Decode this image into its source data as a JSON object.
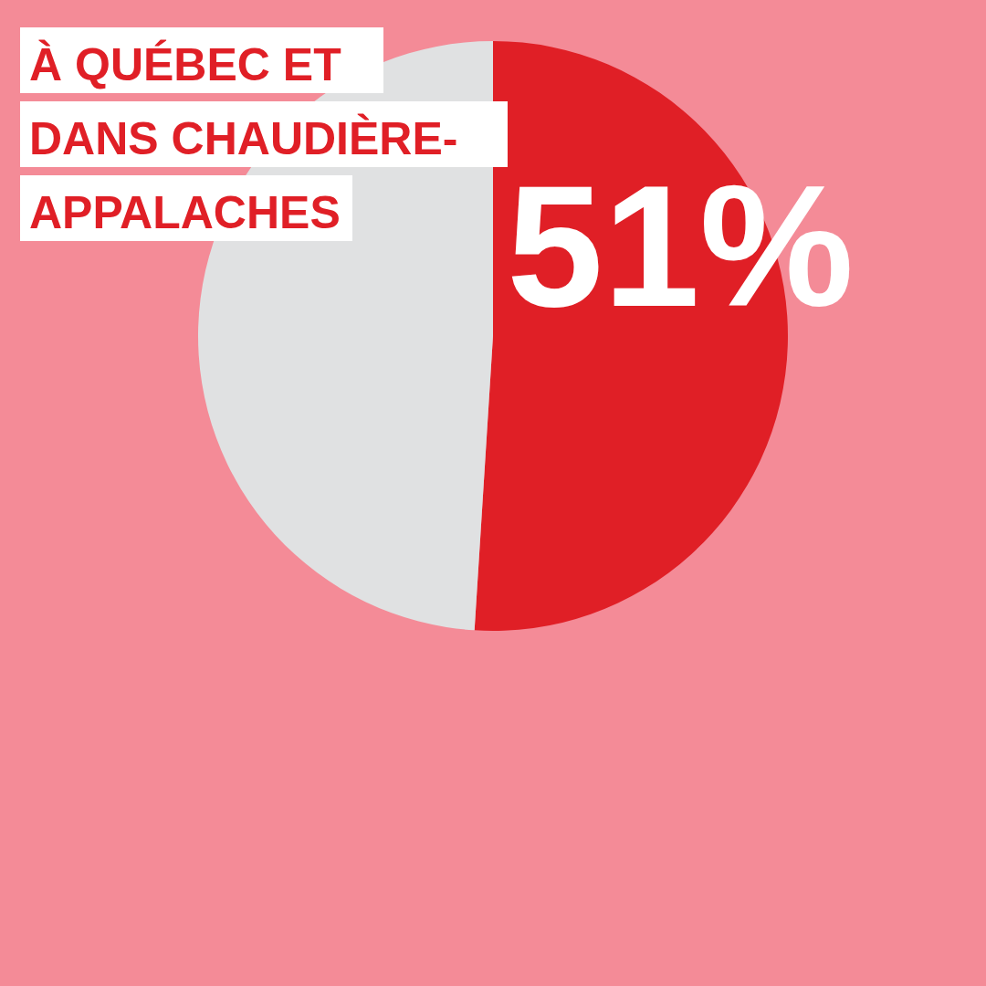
{
  "chart_data": {
    "type": "pie",
    "title": [
      "À QUÉBEC ET",
      "DANS CHAUDIÈRE-",
      "APPALACHES"
    ],
    "categories": [
      null,
      null
    ],
    "values": [
      51,
      49
    ],
    "colors": [
      "#e01f26",
      "#e0e1e2"
    ],
    "value_labels": [
      "51%",
      null
    ]
  }
}
